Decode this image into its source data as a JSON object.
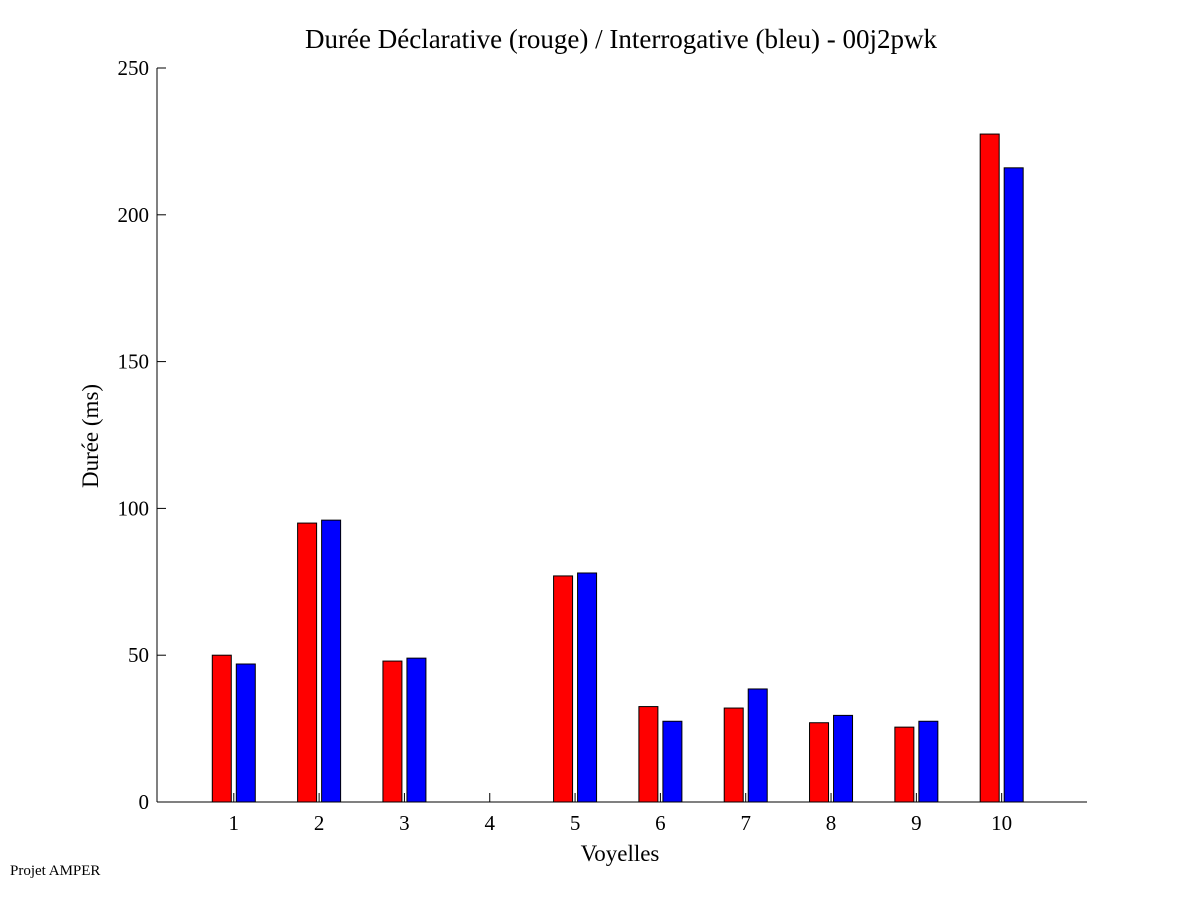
{
  "footer": {
    "note": "Projet AMPER"
  },
  "chart_data": {
    "type": "bar",
    "title": "Durée Déclarative (rouge) / Interrogative (bleu) - 00j2pwk",
    "xlabel": "Voyelles",
    "ylabel": "Durée (ms)",
    "categories": [
      "1",
      "2",
      "3",
      "4",
      "5",
      "6",
      "7",
      "8",
      "9",
      "10"
    ],
    "ylim": [
      0,
      250
    ],
    "xlim": [
      0.1,
      11.0
    ],
    "yticks": [
      0,
      50,
      100,
      150,
      200,
      250
    ],
    "grid": false,
    "legend": "none",
    "series": [
      {
        "color": "#ff0000",
        "values": [
          50,
          95,
          48,
          0,
          77,
          32.5,
          32,
          27,
          25.5,
          227.5
        ]
      },
      {
        "color": "#0000ff",
        "values": [
          47,
          96,
          49,
          0,
          78,
          27.5,
          38.5,
          29.5,
          27.5,
          216
        ]
      }
    ]
  }
}
